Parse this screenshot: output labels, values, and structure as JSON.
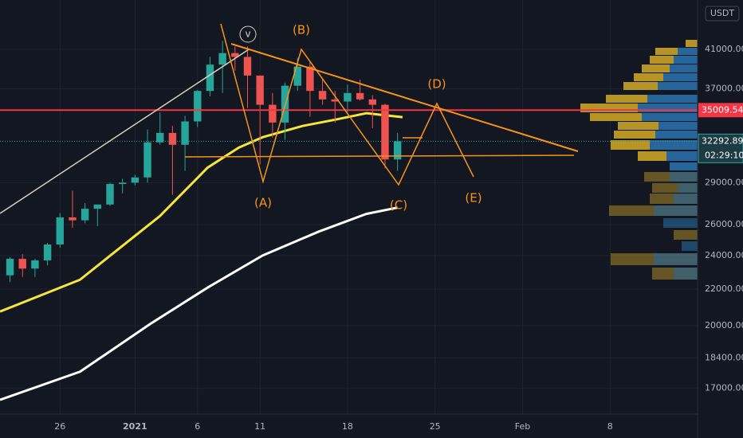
{
  "chart_data": {
    "type": "candlestick",
    "axis_unit": "USDT",
    "log_scale": true,
    "grid": true,
    "up_color": "#26a69a",
    "down_color": "#ef5350",
    "xlim": [
      -4.8,
      51
    ],
    "ylim": [
      15900,
      46600
    ],
    "xticks": [
      {
        "value": 0,
        "label": "26"
      },
      {
        "value": 6,
        "label": "2021"
      },
      {
        "value": 11,
        "label": "6"
      },
      {
        "value": 16,
        "label": "11"
      },
      {
        "value": 23,
        "label": "18"
      },
      {
        "value": 30,
        "label": "25"
      },
      {
        "value": 37,
        "label": "Feb"
      },
      {
        "value": 44,
        "label": "8"
      }
    ],
    "yticks": [
      {
        "value": 41000,
        "label": "41000.00"
      },
      {
        "value": 37000,
        "label": "37000.00"
      },
      {
        "value": 29000,
        "label": "29000.00"
      },
      {
        "value": 26000,
        "label": "26000.00"
      },
      {
        "value": 24000,
        "label": "24000.00"
      },
      {
        "value": 22000,
        "label": "22000.00"
      },
      {
        "value": 20000,
        "label": "20000.00"
      },
      {
        "value": 18400,
        "label": "18400.00"
      },
      {
        "value": 17000,
        "label": "17000.00"
      }
    ],
    "x": [
      -4,
      -3,
      -2,
      -1,
      0,
      1,
      2,
      3,
      4,
      5,
      6,
      7,
      8,
      9,
      10,
      11,
      12,
      13,
      14,
      15,
      16,
      17,
      18,
      19,
      20,
      21,
      22,
      23,
      24,
      25,
      26,
      27
    ],
    "open": [
      22800,
      23800,
      23200,
      23700,
      24700,
      26500,
      26300,
      27100,
      27400,
      28900,
      29000,
      29400,
      32200,
      33000,
      32000,
      34000,
      36800,
      39400,
      40600,
      40200,
      38300,
      35500,
      33900,
      37300,
      39200,
      36800,
      36000,
      35800,
      36600,
      36000,
      35500,
      30800
    ],
    "high": [
      23900,
      24100,
      23800,
      24800,
      26800,
      28400,
      27500,
      27400,
      29000,
      29300,
      29600,
      33300,
      34800,
      33600,
      34500,
      36900,
      40200,
      41900,
      41300,
      41300,
      38300,
      36600,
      37600,
      40100,
      39700,
      37900,
      36800,
      37400,
      37900,
      36400,
      35600,
      33000
    ],
    "low": [
      22400,
      22700,
      22700,
      23400,
      24500,
      25800,
      26100,
      25900,
      27300,
      28200,
      28800,
      29000,
      32000,
      28100,
      29900,
      33500,
      36300,
      36600,
      38800,
      35200,
      30400,
      32600,
      32400,
      36800,
      34400,
      35500,
      33900,
      34800,
      35900,
      33400,
      30100,
      29900
    ],
    "close": [
      23800,
      23200,
      23700,
      24700,
      26500,
      26300,
      27100,
      27400,
      28900,
      29000,
      29400,
      32200,
      33000,
      32000,
      34000,
      36800,
      39400,
      40600,
      40200,
      38300,
      35500,
      33900,
      37300,
      39200,
      36800,
      36000,
      35800,
      36600,
      36000,
      35500,
      30800,
      32292.89
    ],
    "lines": [
      {
        "color": "#f5e63c",
        "x": [
          -4.8,
          1.6,
          8.0,
          11.8,
          14.3,
          16.2,
          19.4,
          22.0,
          24.5,
          27.4
        ],
        "values": [
          20750,
          22540,
          26600,
          30150,
          31760,
          32630,
          33600,
          34150,
          34730,
          34380
        ]
      },
      {
        "color": "#ffffff",
        "x": [
          -4.8,
          1.6,
          7.3,
          11.8,
          16.2,
          20.7,
          24.5,
          27.0
        ],
        "values": [
          16500,
          17750,
          20130,
          22080,
          24000,
          25540,
          26740,
          27180
        ]
      }
    ],
    "hline": {
      "value": 35009.54,
      "color": "#f23645"
    },
    "last_price": 32292.89,
    "countdown": "02:29:10",
    "waves": [
      "v",
      "(B)",
      "(A)",
      "(C)",
      "(D)",
      "(E)"
    ]
  }
}
